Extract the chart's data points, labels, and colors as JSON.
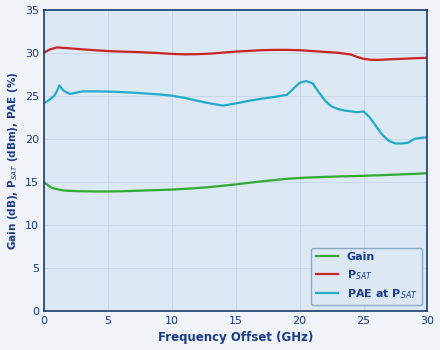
{
  "xlabel": "Frequency Offset (GHz)",
  "xlim": [
    0,
    30
  ],
  "ylim": [
    0,
    35
  ],
  "xticks": [
    0,
    5,
    10,
    15,
    20,
    25,
    30
  ],
  "yticks": [
    0,
    5,
    10,
    15,
    20,
    25,
    30,
    35
  ],
  "grid_color": "#c8d8e8",
  "plot_bg_color": "#dce8f4",
  "fig_bg_color": "#f0f4f8",
  "border_color": "#1a3a6e",
  "line_colors": {
    "gain": "#33aa33",
    "psat": "#cc2222",
    "pae": "#22aacc"
  },
  "legend_text_color": "#1a3a8a",
  "axis_label_color": "#1a3a8a",
  "tick_label_color": "#1a3a8a",
  "gain_x": [
    0.05,
    0.3,
    0.6,
    1.0,
    1.5,
    2.0,
    2.5,
    3.0,
    4.0,
    5.0,
    6.0,
    7.0,
    8.0,
    9.0,
    10.0,
    11.0,
    12.0,
    13.0,
    14.0,
    15.0,
    16.0,
    17.0,
    18.0,
    19.0,
    20.0,
    21.0,
    22.0,
    23.0,
    24.0,
    25.0,
    26.0,
    27.0,
    28.0,
    29.0,
    30.0
  ],
  "gain_y": [
    14.9,
    14.6,
    14.3,
    14.15,
    14.0,
    13.95,
    13.92,
    13.9,
    13.88,
    13.88,
    13.9,
    13.95,
    14.0,
    14.05,
    14.1,
    14.18,
    14.28,
    14.4,
    14.55,
    14.7,
    14.88,
    15.05,
    15.2,
    15.35,
    15.45,
    15.52,
    15.58,
    15.62,
    15.66,
    15.7,
    15.75,
    15.8,
    15.87,
    15.92,
    16.0
  ],
  "psat_x": [
    0.05,
    0.5,
    1.0,
    1.5,
    2.0,
    3.0,
    4.0,
    5.0,
    6.0,
    7.0,
    8.0,
    9.0,
    10.0,
    11.0,
    12.0,
    13.0,
    14.0,
    15.0,
    16.0,
    17.0,
    18.0,
    19.0,
    20.0,
    21.0,
    22.0,
    23.0,
    24.0,
    24.5,
    25.0,
    25.5,
    26.0,
    26.5,
    27.0,
    28.0,
    29.0,
    30.0
  ],
  "psat_y": [
    30.05,
    30.4,
    30.6,
    30.55,
    30.5,
    30.38,
    30.28,
    30.18,
    30.12,
    30.08,
    30.02,
    29.95,
    29.85,
    29.8,
    29.82,
    29.88,
    30.0,
    30.12,
    30.2,
    30.28,
    30.32,
    30.32,
    30.28,
    30.18,
    30.08,
    29.98,
    29.78,
    29.5,
    29.28,
    29.18,
    29.15,
    29.18,
    29.22,
    29.28,
    29.35,
    29.4
  ],
  "pae_x": [
    0.05,
    0.4,
    0.8,
    1.0,
    1.2,
    1.5,
    2.0,
    3.0,
    4.0,
    5.0,
    6.0,
    7.0,
    8.0,
    9.0,
    10.0,
    11.0,
    12.0,
    13.0,
    14.0,
    15.0,
    16.0,
    17.0,
    18.0,
    19.0,
    20.0,
    20.5,
    21.0,
    21.5,
    22.0,
    22.5,
    23.0,
    23.5,
    24.0,
    24.5,
    25.0,
    25.5,
    26.0,
    26.5,
    27.0,
    27.5,
    28.0,
    28.5,
    29.0,
    29.5,
    30.0
  ],
  "pae_y": [
    24.2,
    24.5,
    25.0,
    25.5,
    26.2,
    25.6,
    25.2,
    25.5,
    25.5,
    25.48,
    25.42,
    25.35,
    25.25,
    25.15,
    25.0,
    24.75,
    24.4,
    24.1,
    23.85,
    24.1,
    24.4,
    24.65,
    24.85,
    25.1,
    26.5,
    26.7,
    26.45,
    25.4,
    24.4,
    23.75,
    23.45,
    23.28,
    23.18,
    23.08,
    23.18,
    22.45,
    21.4,
    20.4,
    19.75,
    19.45,
    19.45,
    19.55,
    20.0,
    20.1,
    20.2
  ]
}
